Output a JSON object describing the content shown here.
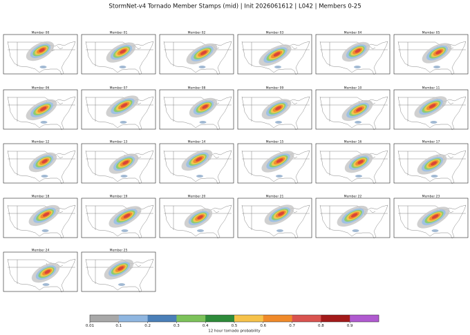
{
  "title": "StormNet-v4 Tornado Member Stamps (mid) | Init 2026061612 | L042 | Members 0-25",
  "members": [
    "Member 00",
    "Member 01",
    "Member 02",
    "Member 03",
    "Member 04",
    "Member 05",
    "Member 06",
    "Member 07",
    "Member 08",
    "Member 09",
    "Member 10",
    "Member 11",
    "Member 12",
    "Member 13",
    "Member 14",
    "Member 15",
    "Member 16",
    "Member 17",
    "Member 18",
    "Member 19",
    "Member 20",
    "Member 21",
    "Member 22",
    "Member 23",
    "Member 24",
    "Member 25"
  ],
  "colorbar": {
    "label": "12 hour tornado probability",
    "ticks": [
      0.01,
      0.1,
      0.2,
      0.3,
      0.4,
      0.5,
      0.6,
      0.7,
      0.8,
      0.9
    ],
    "colors": [
      "#a8a8a8",
      "#8fb6e0",
      "#4a7fb8",
      "#7cc25a",
      "#2e8b3a",
      "#f6c24a",
      "#f08a2a",
      "#d9534f",
      "#a31a1a",
      "#b05ad0"
    ]
  }
}
